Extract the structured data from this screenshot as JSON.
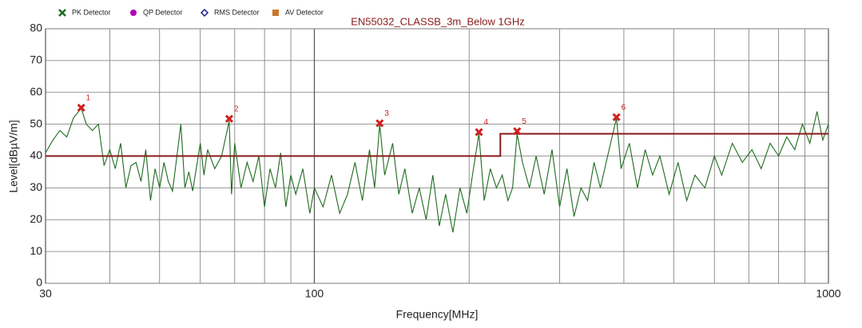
{
  "chart_data": {
    "type": "line",
    "title": "EN55032_CLASSB_3m_Below 1GHz",
    "x_label": "Frequency[MHz]",
    "y_label": "Level[dBµV/m]",
    "xscale": "log",
    "xlim": [
      30,
      1000
    ],
    "ylim": [
      0,
      80
    ],
    "xticks": [
      30,
      100,
      1000
    ],
    "xminor": [
      40,
      50,
      60,
      70,
      80,
      90,
      200,
      300,
      400,
      500,
      600,
      700,
      800,
      900
    ],
    "yticks": [
      0,
      10,
      20,
      30,
      40,
      50,
      60,
      70,
      80
    ],
    "grid": true,
    "series": [
      {
        "name": "PK Detector",
        "color": "#1e6b1e",
        "marker": "cross",
        "x": [
          30,
          31,
          32,
          33,
          34,
          35.2,
          36,
          37,
          38,
          39,
          40,
          41,
          42,
          43,
          44,
          45,
          46,
          47,
          48,
          49,
          50,
          51,
          52,
          53,
          55,
          56,
          57,
          58,
          60,
          61,
          62,
          64,
          66,
          68.3,
          69,
          70,
          72,
          74,
          76,
          78,
          80,
          82,
          84,
          86,
          88,
          90,
          92,
          95,
          98,
          100,
          104,
          108,
          112,
          116,
          120,
          124,
          128,
          131,
          134,
          137,
          142,
          146,
          150,
          155,
          160,
          165,
          170,
          175,
          180,
          186,
          192,
          198,
          203,
          209,
          214,
          220,
          226,
          232,
          238,
          243,
          248,
          254,
          262,
          270,
          280,
          290,
          300,
          310,
          320,
          330,
          340,
          350,
          360,
          372,
          387,
          395,
          410,
          425,
          440,
          455,
          470,
          490,
          510,
          530,
          550,
          575,
          600,
          620,
          650,
          680,
          710,
          740,
          770,
          800,
          830,
          860,
          890,
          920,
          950,
          975,
          1000
        ],
        "values": [
          41,
          45,
          48,
          46,
          52,
          55,
          50,
          48,
          50,
          37,
          42,
          36,
          44,
          30,
          37,
          38,
          32,
          42,
          26,
          36,
          30,
          38,
          32,
          29,
          50,
          30,
          35,
          29,
          44,
          34,
          42,
          36,
          40,
          51,
          28,
          44,
          30,
          38,
          32,
          40,
          24,
          36,
          30,
          41,
          24,
          34,
          28,
          36,
          22,
          30,
          24,
          34,
          22,
          28,
          38,
          26,
          42,
          30,
          50,
          34,
          44,
          28,
          36,
          22,
          30,
          20,
          34,
          18,
          28,
          16,
          30,
          22,
          34,
          47,
          26,
          36,
          30,
          34,
          26,
          30,
          47,
          38,
          30,
          40,
          28,
          42,
          24,
          36,
          21,
          30,
          26,
          38,
          30,
          40,
          52,
          36,
          44,
          30,
          42,
          34,
          40,
          28,
          38,
          26,
          34,
          30,
          40,
          34,
          44,
          38,
          42,
          36,
          44,
          40,
          46,
          42,
          50,
          44,
          54,
          45,
          50
        ]
      },
      {
        "name": "QP Detector",
        "color": "#b000b0",
        "marker": "hexagon",
        "x": [],
        "values": []
      },
      {
        "name": "RMS Detector",
        "color": "#1a1a8c",
        "marker": "diamond",
        "x": [],
        "values": []
      },
      {
        "name": "AV Detector",
        "color": "#c8782a",
        "marker": "square",
        "x": [],
        "values": []
      }
    ],
    "limit": {
      "color": "#8b1a1a",
      "x": [
        30,
        230,
        230,
        1000
      ],
      "values": [
        40,
        40,
        47,
        47
      ]
    },
    "markers": {
      "color": "#d02020",
      "labels": [
        "1",
        "2",
        "3",
        "4",
        "5",
        "6"
      ],
      "x": [
        35.2,
        68.3,
        134,
        209,
        248,
        387
      ],
      "values": [
        55.2,
        51.7,
        50.3,
        47.5,
        47.8,
        52.2
      ]
    }
  }
}
